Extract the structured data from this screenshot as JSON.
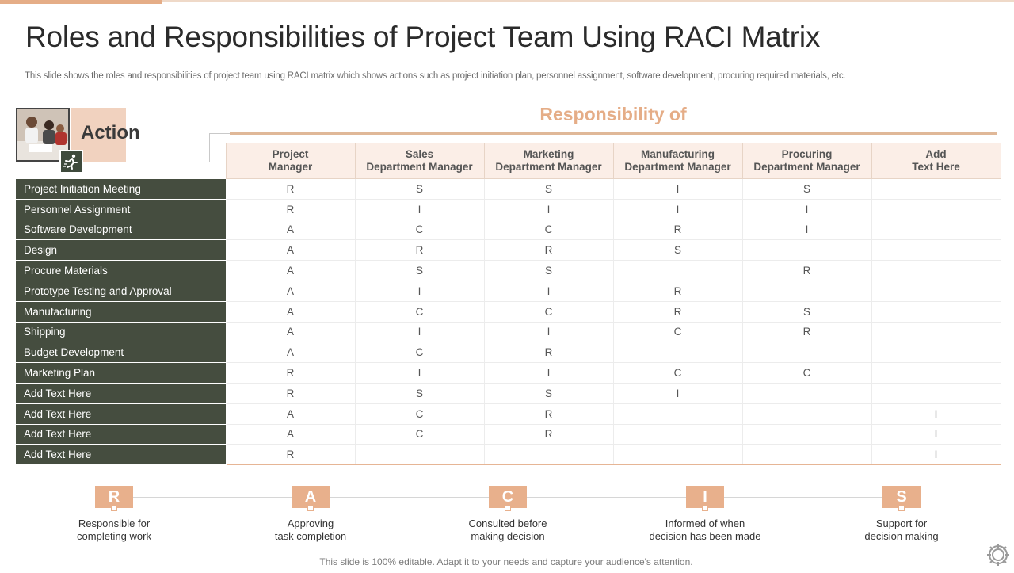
{
  "title": "Roles and Responsibilities of Project Team Using RACI Matrix",
  "subtitle": "This slide shows the roles and responsibilities of project team using RACI matrix which shows actions such as project initiation plan, personnel assignment, software development, procuring required materials, etc.",
  "action_label": "Action",
  "responsibility_title": "Responsibility of",
  "columns": [
    {
      "line1": "Project",
      "line2": "Manager"
    },
    {
      "line1": "Sales",
      "line2": "Department Manager"
    },
    {
      "line1": "Marketing",
      "line2": "Department Manager"
    },
    {
      "line1": "Manufacturing",
      "line2": "Department Manager"
    },
    {
      "line1": "Procuring",
      "line2": "Department Manager"
    },
    {
      "line1": "Add",
      "line2": "Text Here"
    }
  ],
  "rows": [
    {
      "action": "Project Initiation Meeting",
      "cells": [
        "R",
        "S",
        "S",
        "I",
        "S",
        ""
      ]
    },
    {
      "action": "Personnel Assignment",
      "cells": [
        "R",
        "I",
        "I",
        "I",
        "I",
        ""
      ]
    },
    {
      "action": "Software Development",
      "cells": [
        "A",
        "C",
        "C",
        "R",
        "I",
        ""
      ]
    },
    {
      "action": "Design",
      "cells": [
        "A",
        "R",
        "R",
        "S",
        "",
        ""
      ]
    },
    {
      "action": "Procure Materials",
      "cells": [
        "A",
        "S",
        "S",
        "",
        "R",
        ""
      ]
    },
    {
      "action": "Prototype Testing and Approval",
      "cells": [
        "A",
        "I",
        "I",
        "R",
        "",
        ""
      ]
    },
    {
      "action": "Manufacturing",
      "cells": [
        "A",
        "C",
        "C",
        "R",
        "S",
        ""
      ]
    },
    {
      "action": "Shipping",
      "cells": [
        "A",
        "I",
        "I",
        "C",
        "R",
        ""
      ]
    },
    {
      "action": "Budget Development",
      "cells": [
        "A",
        "C",
        "R",
        "",
        "",
        ""
      ]
    },
    {
      "action": "Marketing Plan",
      "cells": [
        "R",
        "I",
        "I",
        "C",
        "C",
        ""
      ]
    },
    {
      "action": "Add Text Here",
      "cells": [
        "R",
        "S",
        "S",
        "I",
        "",
        ""
      ]
    },
    {
      "action": "Add Text Here",
      "cells": [
        "A",
        "C",
        "R",
        "",
        "",
        "I"
      ]
    },
    {
      "action": "Add Text Here",
      "cells": [
        "A",
        "C",
        "R",
        "",
        "",
        "I"
      ]
    },
    {
      "action": "Add Text Here",
      "cells": [
        "R",
        "",
        "",
        "",
        "",
        "I"
      ]
    }
  ],
  "legend": [
    {
      "letter": "R",
      "text": "Responsible for\ncompleting work"
    },
    {
      "letter": "A",
      "text": "Approving\ntask completion"
    },
    {
      "letter": "C",
      "text": "Consulted before\nmaking decision"
    },
    {
      "letter": "I",
      "text": "Informed  of when\ndecision has been made"
    },
    {
      "letter": "S",
      "text": "Support for\ndecision making"
    }
  ],
  "footer": "This slide is 100% editable. Adapt it to your needs and capture your audience's attention.",
  "colors": {
    "accent": "#e5ad87",
    "action_cell": "#454d3f",
    "header_cell": "#fbeee7"
  },
  "icons": {
    "team_photo": "team-photo-image",
    "action_icon": "running-figure-icon",
    "corner": "gear-icon"
  }
}
